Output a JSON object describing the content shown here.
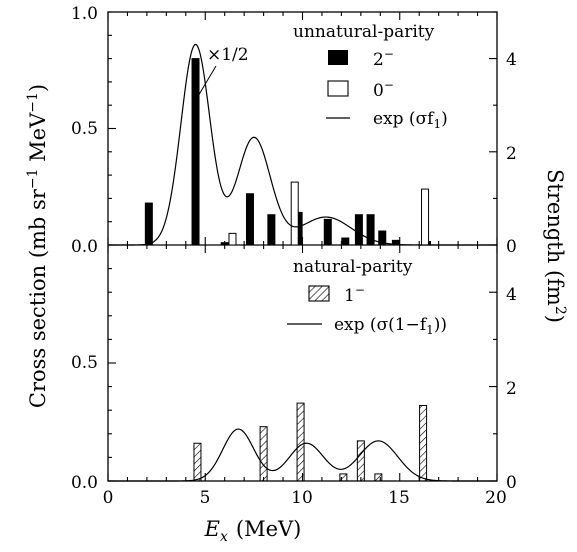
{
  "chart_data": [
    {
      "panel": "top",
      "type": "bar",
      "title": "unnatural-parity",
      "xlabel": "E_x (MeV)",
      "ylabel": "Cross section (mb sr^-1 MeV^-1)",
      "y2label": "Strength (fm^2)",
      "xlim": [
        0,
        20
      ],
      "ylim": [
        0,
        1.0
      ],
      "y2lim": [
        0,
        5
      ],
      "x_ticks": [
        "0",
        "5",
        "10",
        "15",
        "20"
      ],
      "y_ticks": [
        "0.0",
        "0.5",
        "1.0"
      ],
      "y2_ticks": [
        "0",
        "2",
        "4"
      ],
      "annotation": "×1/2",
      "legend_position": "top-right",
      "legend": {
        "entry1": "2⁻",
        "entry2": "0⁻",
        "entry3": "exp (σf₁)"
      },
      "series": [
        {
          "key": "2-",
          "style": "filled-bar",
          "x": [
            2.1,
            4.5,
            6.0,
            7.3,
            8.4,
            9.8,
            11.3,
            12.2,
            12.9,
            13.5,
            14.1,
            14.8,
            16.4
          ],
          "values": [
            0.18,
            0.8,
            0.01,
            0.22,
            0.13,
            0.14,
            0.11,
            0.03,
            0.13,
            0.13,
            0.06,
            0.02,
            0.015
          ]
        },
        {
          "key": "0-",
          "style": "open-bar",
          "x": [
            6.4,
            9.6,
            16.3
          ],
          "values": [
            0.05,
            0.27,
            0.24
          ]
        },
        {
          "key": "exp",
          "style": "line",
          "axis": "right",
          "gaussians": [
            {
              "center": 4.5,
              "amplitude": 4.3,
              "sigma": 0.75
            },
            {
              "center": 7.5,
              "amplitude": 2.3,
              "sigma": 0.85
            },
            {
              "center": 11.2,
              "amplitude": 0.6,
              "sigma": 1.3
            }
          ]
        }
      ]
    },
    {
      "panel": "bottom",
      "type": "bar",
      "title": "natural-parity",
      "xlim": [
        0,
        20
      ],
      "ylim": [
        0,
        1.0
      ],
      "y2lim": [
        0,
        5
      ],
      "x_ticks": [
        "0",
        "5",
        "10",
        "15",
        "20"
      ],
      "y_ticks": [
        "0.0",
        "0.5"
      ],
      "y2_ticks": [
        "0",
        "2",
        "4"
      ],
      "legend_position": "top-right",
      "legend": {
        "entry1": "1⁻",
        "entry2": "exp (σ(1−f₁))"
      },
      "series": [
        {
          "key": "1-",
          "style": "hatched-bar",
          "x": [
            4.6,
            8.0,
            9.9,
            12.1,
            13.0,
            13.9,
            16.2
          ],
          "values": [
            0.16,
            0.23,
            0.33,
            0.03,
            0.17,
            0.03,
            0.32
          ]
        },
        {
          "key": "exp",
          "style": "line",
          "axis": "right",
          "gaussians": [
            {
              "center": 6.7,
              "amplitude": 1.1,
              "sigma": 0.8
            },
            {
              "center": 10.2,
              "amplitude": 0.8,
              "sigma": 0.9
            },
            {
              "center": 13.9,
              "amplitude": 0.85,
              "sigma": 1.0
            }
          ]
        }
      ]
    }
  ],
  "labels": {
    "y_left": "Cross section (mb sr",
    "y_left_sup1": "−1",
    "y_left_mid": " MeV",
    "y_left_sup2": "−1",
    "y_left_end": ")",
    "y_right": "Strength (fm",
    "y_right_sup": "2",
    "y_right_end": ")",
    "x_var": "E",
    "x_sub": "x",
    "x_unit": "(MeV)",
    "top_title": "unnatural-parity",
    "bottom_title": "natural-parity",
    "annotation": "×1/2",
    "leg_2m_base": "2",
    "leg_2m_sup": "−",
    "leg_0m_base": "0",
    "leg_0m_sup": "−",
    "leg_exp1": "exp (σf",
    "leg_exp1_sub": "1",
    "leg_exp1_end": ")",
    "leg_1m_base": "1",
    "leg_1m_sup": "−",
    "leg_exp2": "exp (σ(1−f",
    "leg_exp2_sub": "1",
    "leg_exp2_end": "))"
  }
}
